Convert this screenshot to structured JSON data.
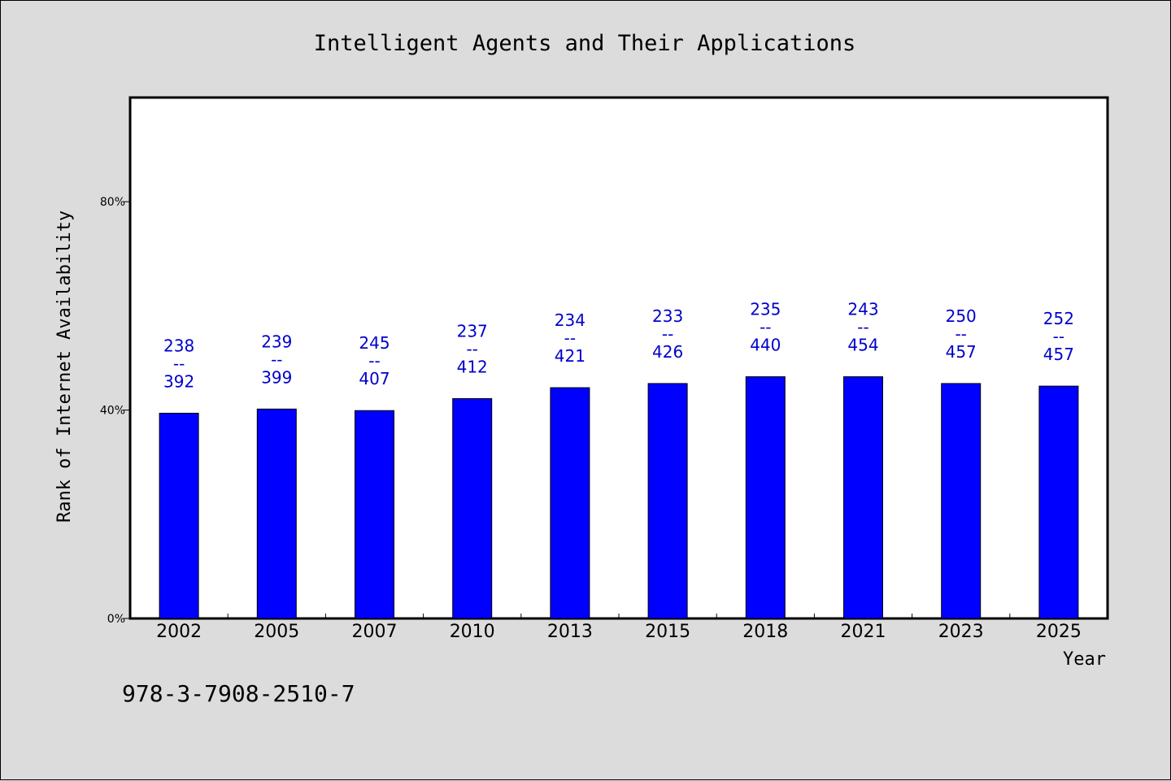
{
  "colors": {
    "background": "#dcdcdc",
    "plot_background": "#ffffff",
    "bar": "#0000ff",
    "bar_label": "#0000cc",
    "axis": "#000000"
  },
  "footer": {
    "isbn": "978-3-7908-2510-7"
  },
  "chart_data": {
    "type": "bar",
    "title": "Intelligent Agents and Their Applications",
    "xlabel": "Year",
    "ylabel": "Rank of Internet Availability",
    "ylim": [
      0,
      100
    ],
    "yticks": [
      {
        "value": 0,
        "label": "0%"
      },
      {
        "value": 40,
        "label": "40%"
      },
      {
        "value": 80,
        "label": "80%"
      }
    ],
    "grid": false,
    "categories": [
      "2002",
      "2005",
      "2007",
      "2010",
      "2013",
      "2015",
      "2018",
      "2021",
      "2023",
      "2025"
    ],
    "values": [
      39.4,
      40.2,
      39.9,
      42.2,
      44.3,
      45.1,
      46.4,
      46.4,
      45.1,
      44.6
    ],
    "data_labels": [
      {
        "top": "238",
        "sep": "--",
        "bottom": "392"
      },
      {
        "top": "239",
        "sep": "--",
        "bottom": "399"
      },
      {
        "top": "245",
        "sep": "--",
        "bottom": "407"
      },
      {
        "top": "237",
        "sep": "--",
        "bottom": "412"
      },
      {
        "top": "234",
        "sep": "--",
        "bottom": "421"
      },
      {
        "top": "233",
        "sep": "--",
        "bottom": "426"
      },
      {
        "top": "235",
        "sep": "--",
        "bottom": "440"
      },
      {
        "top": "243",
        "sep": "--",
        "bottom": "454"
      },
      {
        "top": "250",
        "sep": "--",
        "bottom": "457"
      },
      {
        "top": "252",
        "sep": "--",
        "bottom": "457"
      }
    ]
  }
}
